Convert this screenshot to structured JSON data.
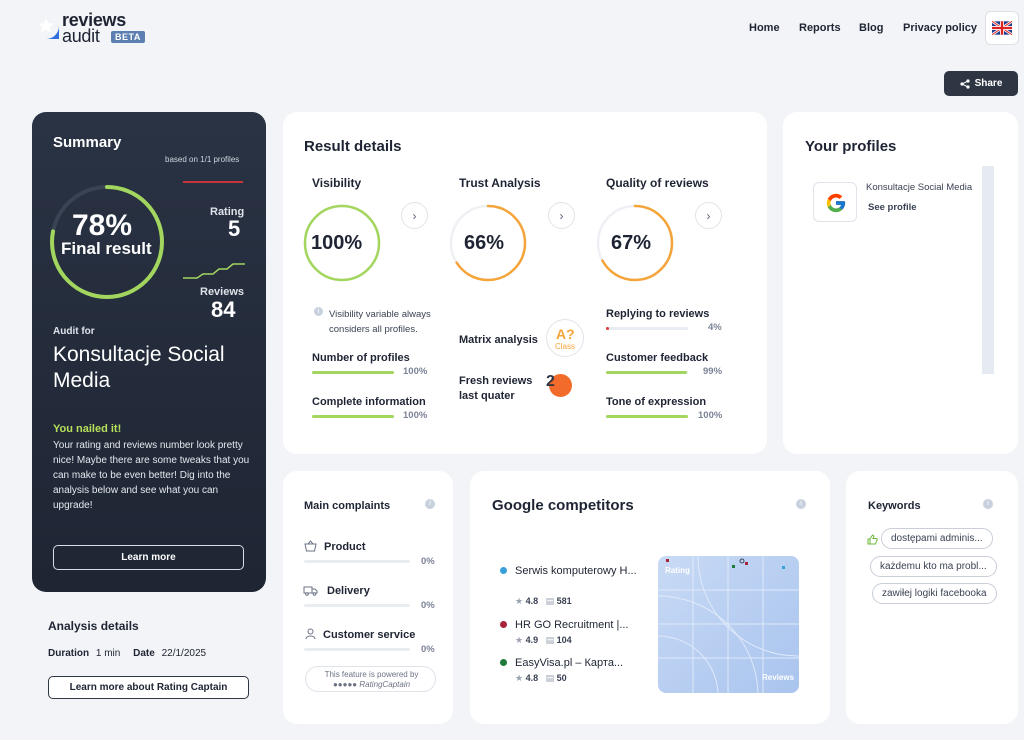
{
  "header": {
    "logo_line1": "reviews",
    "logo_line2": "audit",
    "beta": "BETA",
    "nav": [
      "Home",
      "Reports",
      "Blog",
      "Privacy policy"
    ],
    "share": "Share"
  },
  "summary": {
    "title": "Summary",
    "based_on": "based on 1/1 profiles",
    "percent": "78%",
    "final_result": "Final result",
    "rating_label": "Rating",
    "rating_value": "5",
    "reviews_label": "Reviews",
    "reviews_value": "84",
    "audit_for": "Audit for",
    "company": "Konsultacje Social Media",
    "nailed": "You nailed it!",
    "message": "Your rating and reviews number look pretty nice! Maybe there are some tweaks that you can make to be even better! Dig into the analysis below and see what you can upgrade!",
    "learn_more": "Learn more",
    "score": 0.78
  },
  "analysis": {
    "title": "Analysis details",
    "duration_label": "Duration",
    "duration_value": "1 min",
    "date_label": "Date",
    "date_value": "22/1/2025",
    "button": "Learn more about Rating Captain"
  },
  "result": {
    "title": "Result details",
    "visibility": {
      "title": "Visibility",
      "value": "100%",
      "score": 1.0,
      "note": "Visibility variable always considers all profiles.",
      "items": [
        {
          "label": "Number of profiles",
          "value": "100%",
          "fill": 1.0
        },
        {
          "label": "Complete information",
          "value": "100%",
          "fill": 1.0
        }
      ]
    },
    "trust": {
      "title": "Trust Analysis",
      "value": "66%",
      "score": 0.66,
      "matrix_label": "Matrix analysis",
      "matrix_badge": "A?",
      "matrix_sub": "Class",
      "fresh_label": "Fresh reviews last quater",
      "fresh_value": "2"
    },
    "quality": {
      "title": "Quality of reviews",
      "value": "67%",
      "score": 0.67,
      "items": [
        {
          "label": "Replying to reviews",
          "value": "4%",
          "fill": 0.04,
          "color": "#e23b3b"
        },
        {
          "label": "Customer feedback",
          "value": "99%",
          "fill": 0.99,
          "color": "#a3d65e"
        },
        {
          "label": "Tone of expression",
          "value": "100%",
          "fill": 1.0,
          "color": "#a3d65e"
        }
      ]
    }
  },
  "profiles": {
    "title": "Your profiles",
    "items": [
      {
        "name": "Konsultacje Social Media",
        "link": "See profile"
      }
    ]
  },
  "complaints": {
    "title": "Main complaints",
    "items": [
      {
        "label": "Product",
        "value": "0%"
      },
      {
        "label": "Delivery",
        "value": "0%"
      },
      {
        "label": "Customer service",
        "value": "0%"
      }
    ],
    "powered_line1": "This feature is powered by",
    "powered_line2": "RatingCaptain"
  },
  "competitors": {
    "title": "Google competitors",
    "items": [
      {
        "name": "Serwis komputerowy H...",
        "rating": "4.8",
        "reviews": "581",
        "color": "#3aa0d8"
      },
      {
        "name": "HR GO Recruitment |...",
        "rating": "4.9",
        "reviews": "104",
        "color": "#a8243b"
      },
      {
        "name": "EasyVisa.pl – Карта...",
        "rating": "4.8",
        "reviews": "50",
        "color": "#1f7a3a"
      }
    ],
    "map_y_label": "Rating",
    "map_x_label": "Reviews"
  },
  "keywords": {
    "title": "Keywords",
    "items": [
      "dostępami adminis...",
      "każdemu kto ma probl...",
      "zawiłej logiki facebooka"
    ]
  },
  "colors": {
    "accent_green": "#a3d65e",
    "accent_orange": "#f5a43a",
    "dark_card": "#232b3a",
    "orange_dot": "#f26b2a"
  }
}
